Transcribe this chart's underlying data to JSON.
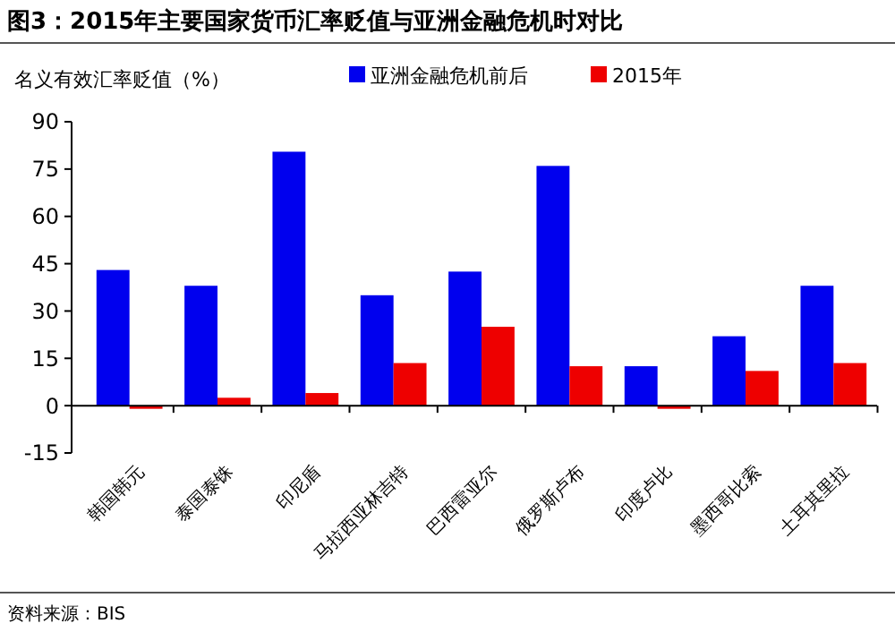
{
  "chart_data": {
    "type": "bar",
    "title": "图3：2015年主要国家货币汇率贬值与亚洲金融危机时对比",
    "ylabel": "名义有效汇率贬值（%）",
    "categories": [
      "韩国韩元",
      "泰国泰铢",
      "印尼盾",
      "马拉西亚林吉特",
      "巴西雷亚尔",
      "俄罗斯卢布",
      "印度卢比",
      "墨西哥比索",
      "土耳其里拉"
    ],
    "series": [
      {
        "name": "亚洲金融危机前后",
        "color": "#0000ee",
        "values": [
          43,
          38,
          80.5,
          35,
          42.5,
          76,
          12.5,
          22,
          38
        ]
      },
      {
        "name": "2015年",
        "color": "#ee0000",
        "values": [
          -1,
          2.5,
          4,
          13.5,
          25,
          12.5,
          -1,
          11,
          13.5
        ]
      }
    ],
    "ylim": [
      -15,
      90
    ],
    "yticks": [
      -15,
      0,
      15,
      30,
      45,
      60,
      75,
      90
    ],
    "legend": "top right",
    "annotations": [
      "资料来源：BIS"
    ]
  }
}
